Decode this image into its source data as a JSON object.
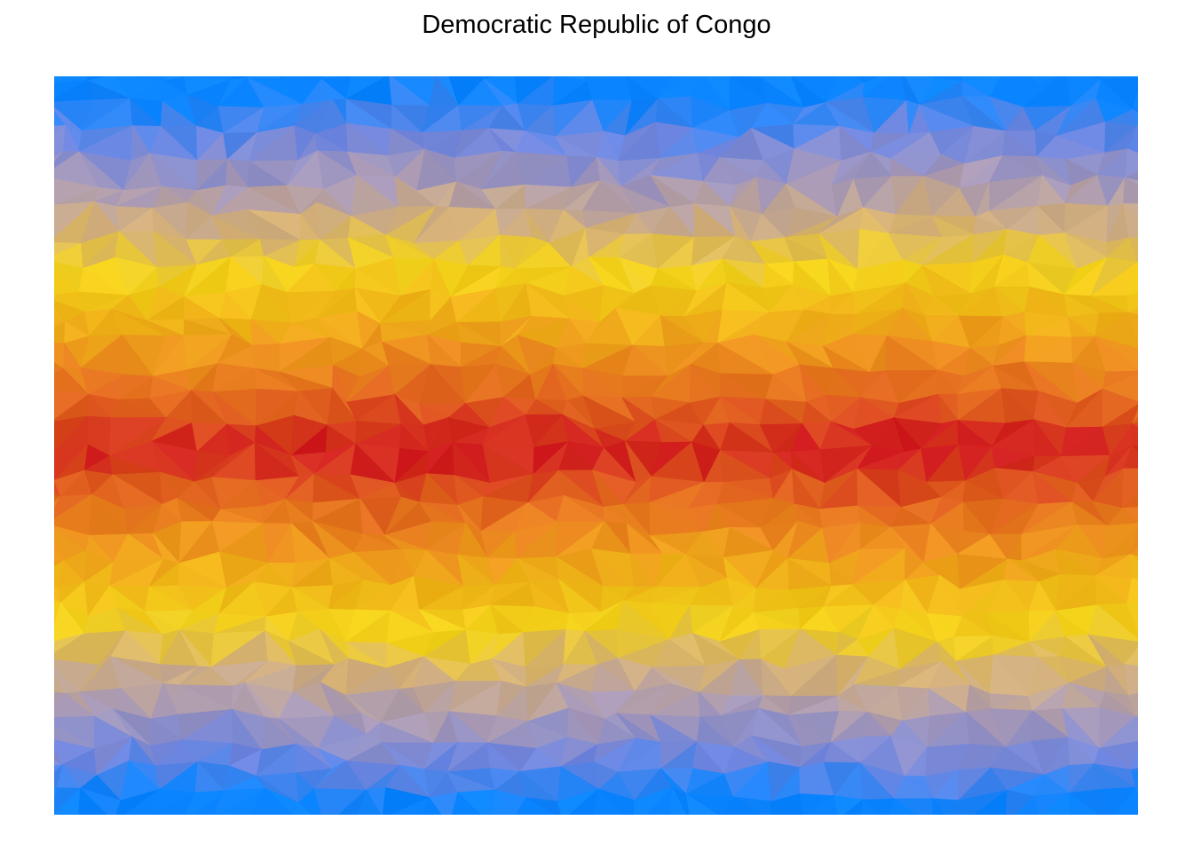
{
  "title": "Democratic Republic of Congo",
  "palette": {
    "stops": [
      "#0a84ff",
      "#6f86e0",
      "#a899b8",
      "#d4b07a",
      "#f3d21a",
      "#f0b419",
      "#ec8d1f",
      "#e0601f",
      "#d01a1e"
    ],
    "center": "#d01a1e",
    "mid": "#f3d21a",
    "edge": "#0a84ff"
  }
}
